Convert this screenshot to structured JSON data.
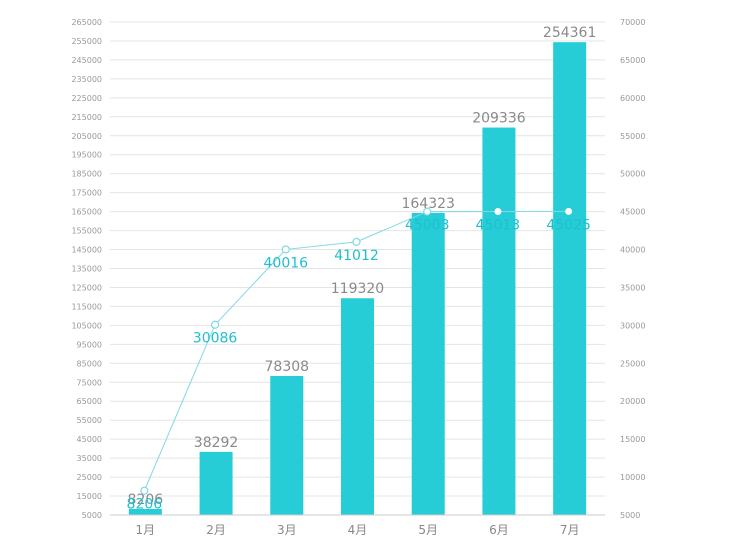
{
  "chart_data": {
    "type": "bar",
    "title": "",
    "xlabel": "",
    "ylabel": "",
    "categories": [
      "1月",
      "2月",
      "3月",
      "4月",
      "5月",
      "6月",
      "7月"
    ],
    "series": [
      {
        "type": "bar",
        "axis": "left",
        "values": [
          8206,
          38292,
          78308,
          119320,
          164323,
          209336,
          254361
        ],
        "color": "#26cdd6"
      },
      {
        "type": "line",
        "axis": "right",
        "values": [
          8206,
          30086,
          40016,
          41012,
          45003,
          45013,
          45025
        ],
        "color": "#7fd9e3",
        "label_color": "#1fbfcf"
      }
    ],
    "y_left": {
      "ylim": [
        5000,
        265000
      ],
      "ticks": [
        5000,
        15000,
        25000,
        35000,
        45000,
        55000,
        65000,
        75000,
        85000,
        95000,
        105000,
        115000,
        125000,
        135000,
        145000,
        155000,
        165000,
        175000,
        185000,
        195000,
        205000,
        215000,
        225000,
        235000,
        245000,
        255000,
        265000
      ]
    },
    "y_right": {
      "ylim": [
        5000,
        70000
      ],
      "ticks": [
        5000,
        10000,
        15000,
        20000,
        25000,
        30000,
        35000,
        40000,
        45000,
        50000,
        55000,
        60000,
        65000,
        70000
      ]
    },
    "grid": true,
    "legend": "none"
  }
}
